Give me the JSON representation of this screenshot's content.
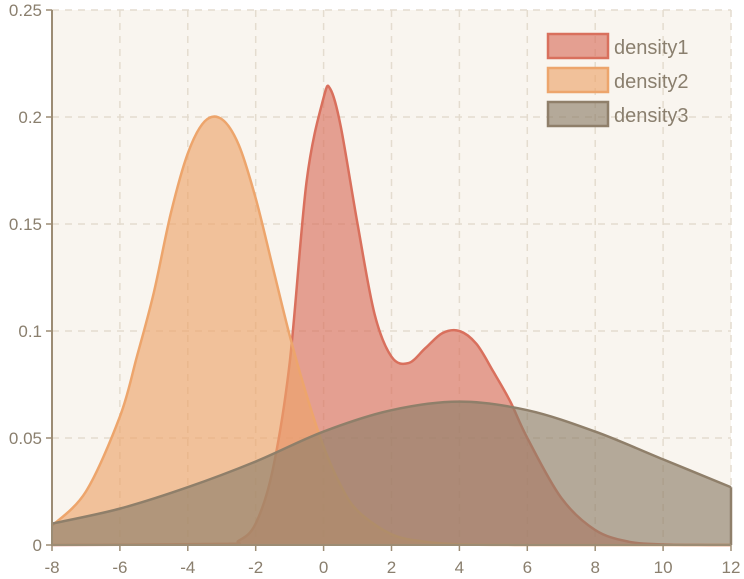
{
  "chart_data": {
    "type": "area",
    "title": "",
    "xlabel": "",
    "ylabel": "",
    "xlim": [
      -8,
      12
    ],
    "ylim": [
      0,
      0.25
    ],
    "x_ticks": [
      -8,
      -6,
      -4,
      -2,
      0,
      2,
      4,
      6,
      8,
      10,
      12
    ],
    "x_tick_labels": [
      "-8",
      "-6",
      "-4",
      "-2",
      "0",
      "2",
      "4",
      "6",
      "8",
      "10",
      "12"
    ],
    "y_ticks": [
      0,
      0.05,
      0.1,
      0.15,
      0.2,
      0.25
    ],
    "y_tick_labels": [
      "0",
      "0.05",
      "0.1",
      "0.15",
      "0.2",
      "0.25"
    ],
    "grid": true,
    "legend_position": "top-right",
    "series": [
      {
        "name": "density1",
        "stroke": "#d9705d",
        "fill": "#d9705d",
        "x": [
          -8,
          -3,
          -2.5,
          -2,
          -1.5,
          -1,
          -0.5,
          0,
          0.2,
          0.5,
          1,
          1.5,
          2,
          2.5,
          3,
          3.5,
          4,
          4.5,
          5,
          5.5,
          6,
          7,
          8,
          9,
          10,
          11,
          12
        ],
        "y": [
          0,
          0.0005,
          0.002,
          0.01,
          0.035,
          0.085,
          0.17,
          0.209,
          0.213,
          0.196,
          0.15,
          0.108,
          0.088,
          0.085,
          0.092,
          0.099,
          0.1,
          0.094,
          0.081,
          0.067,
          0.05,
          0.022,
          0.007,
          0.0015,
          0.0003,
          5e-05,
          0
        ]
      },
      {
        "name": "density2",
        "stroke": "#eda56c",
        "fill": "#eda56c",
        "x": [
          -8,
          -7,
          -6,
          -5.5,
          -5,
          -4.5,
          -4,
          -3.5,
          -3,
          -2.5,
          -2,
          -1.5,
          -1,
          -0.5,
          0,
          0.5,
          1,
          2,
          3,
          4,
          6,
          8,
          12
        ],
        "y": [
          0.009,
          0.025,
          0.06,
          0.088,
          0.118,
          0.155,
          0.183,
          0.198,
          0.199,
          0.187,
          0.162,
          0.13,
          0.098,
          0.07,
          0.046,
          0.028,
          0.016,
          0.005,
          0.0015,
          0.0003,
          0,
          0,
          0
        ]
      },
      {
        "name": "density3",
        "stroke": "#8f7f6a",
        "fill": "#8f7f6a",
        "x": [
          -8,
          -6,
          -4,
          -2,
          0,
          2,
          4,
          6,
          8,
          10,
          12
        ],
        "y": [
          0.01,
          0.017,
          0.027,
          0.039,
          0.053,
          0.063,
          0.067,
          0.063,
          0.053,
          0.04,
          0.027
        ]
      }
    ]
  }
}
